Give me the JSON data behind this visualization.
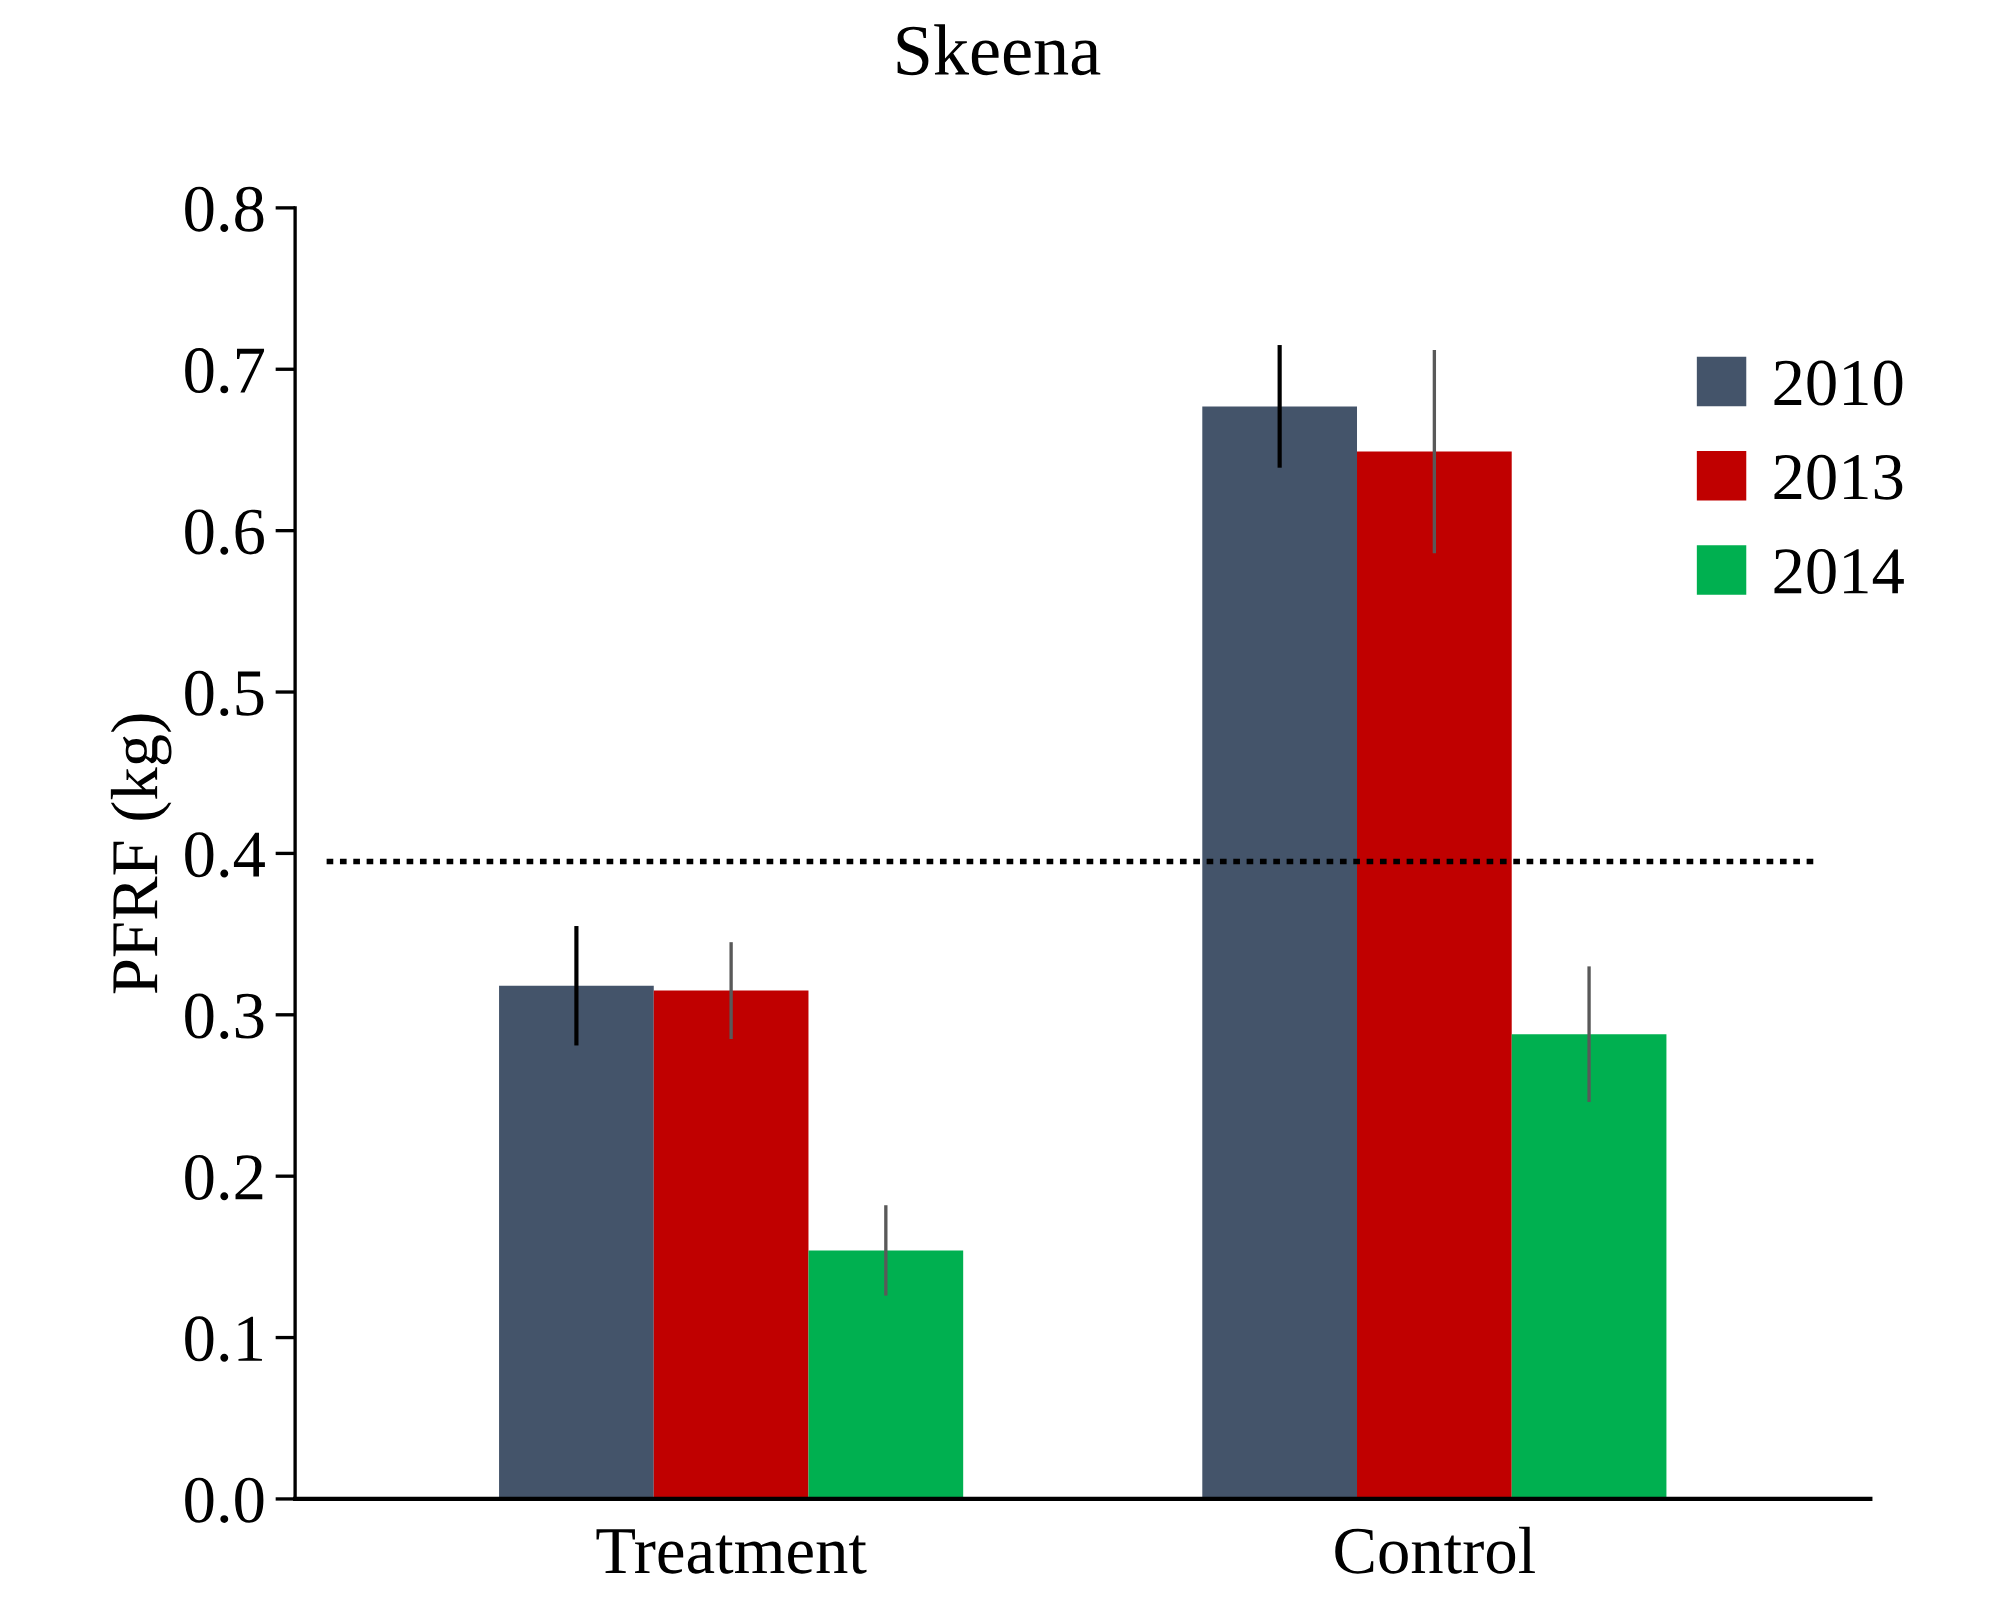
{
  "chart_data": {
    "type": "bar",
    "title": "Skeena",
    "ylabel": "PFRF (kg)",
    "categories": [
      "Treatment",
      "Control"
    ],
    "series": [
      {
        "name": "2010",
        "color": "#44546a",
        "values": [
          0.318,
          0.677
        ],
        "errors": [
          0.037,
          0.038
        ]
      },
      {
        "name": "2013",
        "color": "#c00000",
        "values": [
          0.315,
          0.649
        ],
        "errors": [
          0.03,
          0.063
        ]
      },
      {
        "name": "2014",
        "color": "#00b050",
        "values": [
          0.154,
          0.288
        ],
        "errors": [
          0.028,
          0.042
        ]
      }
    ],
    "ylim": [
      0,
      0.8
    ],
    "yticks": [
      {
        "value": 0,
        "label": "0.0"
      },
      {
        "value": 0.1,
        "label": "0.1"
      },
      {
        "value": 0.2,
        "label": "0.2"
      },
      {
        "value": 0.3,
        "label": "0.3"
      },
      {
        "value": 0.4,
        "label": "0.4"
      },
      {
        "value": 0.5,
        "label": "0.5"
      },
      {
        "value": 0.6,
        "label": "0.6"
      },
      {
        "value": 0.7,
        "label": "0.7"
      },
      {
        "value": 0.8,
        "label": "0.8"
      }
    ],
    "ref_lines": [
      {
        "axis": "y",
        "value": 0.395,
        "color": "#000000",
        "line_style": "dotted"
      }
    ],
    "grid": false,
    "legend": "top right"
  }
}
